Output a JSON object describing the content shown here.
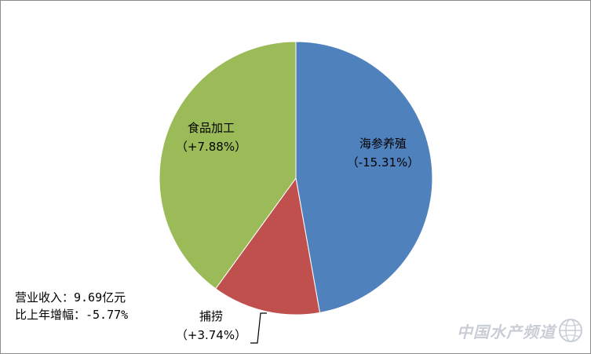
{
  "chart_data": {
    "type": "pie",
    "title": "",
    "slices": [
      {
        "label": "海参养殖",
        "change": "（-15.31%）",
        "value": 47.2,
        "color": "#4f81bd"
      },
      {
        "label": "捕捞",
        "change": "（+3.74%）",
        "value": 12.8,
        "color": "#c0504d"
      },
      {
        "label": "食品加工",
        "change": "（+7.88%）",
        "value": 40.0,
        "color": "#9bbb59"
      }
    ]
  },
  "notes": {
    "revenue": "营业收入：9.69亿元",
    "change": "比上年增幅：-5.77%"
  },
  "watermark": {
    "text": "中国水产频道",
    "icon": "globe-icon"
  }
}
